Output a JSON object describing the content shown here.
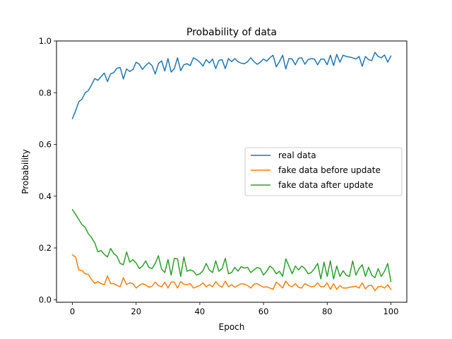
{
  "chart_data": {
    "type": "line",
    "title": "Probability of data",
    "xlabel": "Epoch",
    "ylabel": "Probability",
    "xlim": [
      -5,
      105
    ],
    "ylim": [
      -0.01,
      1.0
    ],
    "xticks": [
      0,
      20,
      40,
      60,
      80,
      100
    ],
    "yticks": [
      0.0,
      0.2,
      0.4,
      0.6,
      0.8,
      1.0
    ],
    "grid": false,
    "legend_position": "center-right",
    "x": [
      0,
      1,
      2,
      3,
      4,
      5,
      6,
      7,
      8,
      9,
      10,
      11,
      12,
      13,
      14,
      15,
      16,
      17,
      18,
      19,
      20,
      21,
      22,
      23,
      24,
      25,
      26,
      27,
      28,
      29,
      30,
      31,
      32,
      33,
      34,
      35,
      36,
      37,
      38,
      39,
      40,
      41,
      42,
      43,
      44,
      45,
      46,
      47,
      48,
      49,
      50,
      51,
      52,
      53,
      54,
      55,
      56,
      57,
      58,
      59,
      60,
      61,
      62,
      63,
      64,
      65,
      66,
      67,
      68,
      69,
      70,
      71,
      72,
      73,
      74,
      75,
      76,
      77,
      78,
      79,
      80,
      81,
      82,
      83,
      84,
      85,
      86,
      87,
      88,
      89,
      90,
      91,
      92,
      93,
      94,
      95,
      96,
      97,
      98,
      99,
      100
    ],
    "series": [
      {
        "name": "real data",
        "color": "#1f77b4",
        "values": [
          0.7,
          0.73,
          0.765,
          0.775,
          0.8,
          0.808,
          0.83,
          0.855,
          0.848,
          0.862,
          0.876,
          0.843,
          0.873,
          0.878,
          0.895,
          0.897,
          0.853,
          0.892,
          0.882,
          0.89,
          0.918,
          0.91,
          0.89,
          0.905,
          0.916,
          0.905,
          0.872,
          0.912,
          0.923,
          0.884,
          0.932,
          0.88,
          0.893,
          0.935,
          0.885,
          0.908,
          0.912,
          0.905,
          0.935,
          0.928,
          0.918,
          0.903,
          0.928,
          0.915,
          0.93,
          0.893,
          0.925,
          0.928,
          0.893,
          0.932,
          0.92,
          0.932,
          0.92,
          0.914,
          0.912,
          0.92,
          0.935,
          0.92,
          0.91,
          0.918,
          0.93,
          0.922,
          0.935,
          0.945,
          0.9,
          0.92,
          0.945,
          0.892,
          0.932,
          0.93,
          0.908,
          0.933,
          0.935,
          0.91,
          0.928,
          0.932,
          0.93,
          0.908,
          0.93,
          0.93,
          0.908,
          0.945,
          0.905,
          0.948,
          0.918,
          0.945,
          0.94,
          0.938,
          0.935,
          0.93,
          0.94,
          0.902,
          0.94,
          0.928,
          0.924,
          0.956,
          0.94,
          0.935,
          0.946,
          0.918,
          0.942
        ]
      },
      {
        "name": "fake data before update",
        "color": "#ff7f0e",
        "values": [
          0.173,
          0.165,
          0.115,
          0.113,
          0.1,
          0.098,
          0.078,
          0.063,
          0.07,
          0.062,
          0.058,
          0.092,
          0.062,
          0.062,
          0.055,
          0.05,
          0.085,
          0.058,
          0.065,
          0.062,
          0.045,
          0.055,
          0.062,
          0.057,
          0.048,
          0.052,
          0.068,
          0.055,
          0.05,
          0.068,
          0.045,
          0.068,
          0.068,
          0.045,
          0.07,
          0.06,
          0.058,
          0.062,
          0.045,
          0.05,
          0.055,
          0.065,
          0.05,
          0.058,
          0.05,
          0.07,
          0.055,
          0.048,
          0.072,
          0.05,
          0.058,
          0.048,
          0.055,
          0.062,
          0.06,
          0.055,
          0.045,
          0.06,
          0.062,
          0.055,
          0.048,
          0.05,
          0.045,
          0.04,
          0.068,
          0.058,
          0.045,
          0.072,
          0.055,
          0.05,
          0.062,
          0.048,
          0.045,
          0.062,
          0.055,
          0.05,
          0.052,
          0.065,
          0.05,
          0.05,
          0.065,
          0.04,
          0.062,
          0.04,
          0.055,
          0.045,
          0.045,
          0.048,
          0.05,
          0.052,
          0.045,
          0.065,
          0.042,
          0.055,
          0.055,
          0.035,
          0.05,
          0.052,
          0.045,
          0.058,
          0.04
        ]
      },
      {
        "name": "fake data after update",
        "color": "#2ca02c",
        "values": [
          0.348,
          0.33,
          0.31,
          0.29,
          0.28,
          0.255,
          0.24,
          0.22,
          0.185,
          0.19,
          0.175,
          0.165,
          0.198,
          0.178,
          0.168,
          0.14,
          0.135,
          0.185,
          0.145,
          0.155,
          0.142,
          0.12,
          0.13,
          0.15,
          0.125,
          0.12,
          0.14,
          0.17,
          0.118,
          0.105,
          0.155,
          0.095,
          0.16,
          0.158,
          0.09,
          0.165,
          0.11,
          0.115,
          0.11,
          0.095,
          0.1,
          0.112,
          0.14,
          0.115,
          0.105,
          0.15,
          0.11,
          0.12,
          0.16,
          0.1,
          0.105,
          0.125,
          0.11,
          0.128,
          0.122,
          0.125,
          0.105,
          0.115,
          0.125,
          0.12,
          0.095,
          0.11,
          0.13,
          0.12,
          0.1,
          0.11,
          0.09,
          0.158,
          0.13,
          0.1,
          0.13,
          0.115,
          0.13,
          0.12,
          0.1,
          0.105,
          0.12,
          0.14,
          0.08,
          0.145,
          0.09,
          0.15,
          0.08,
          0.13,
          0.09,
          0.112,
          0.095,
          0.09,
          0.15,
          0.095,
          0.12,
          0.135,
          0.09,
          0.125,
          0.095,
          0.085,
          0.12,
          0.09,
          0.11,
          0.14,
          0.07
        ]
      }
    ]
  }
}
